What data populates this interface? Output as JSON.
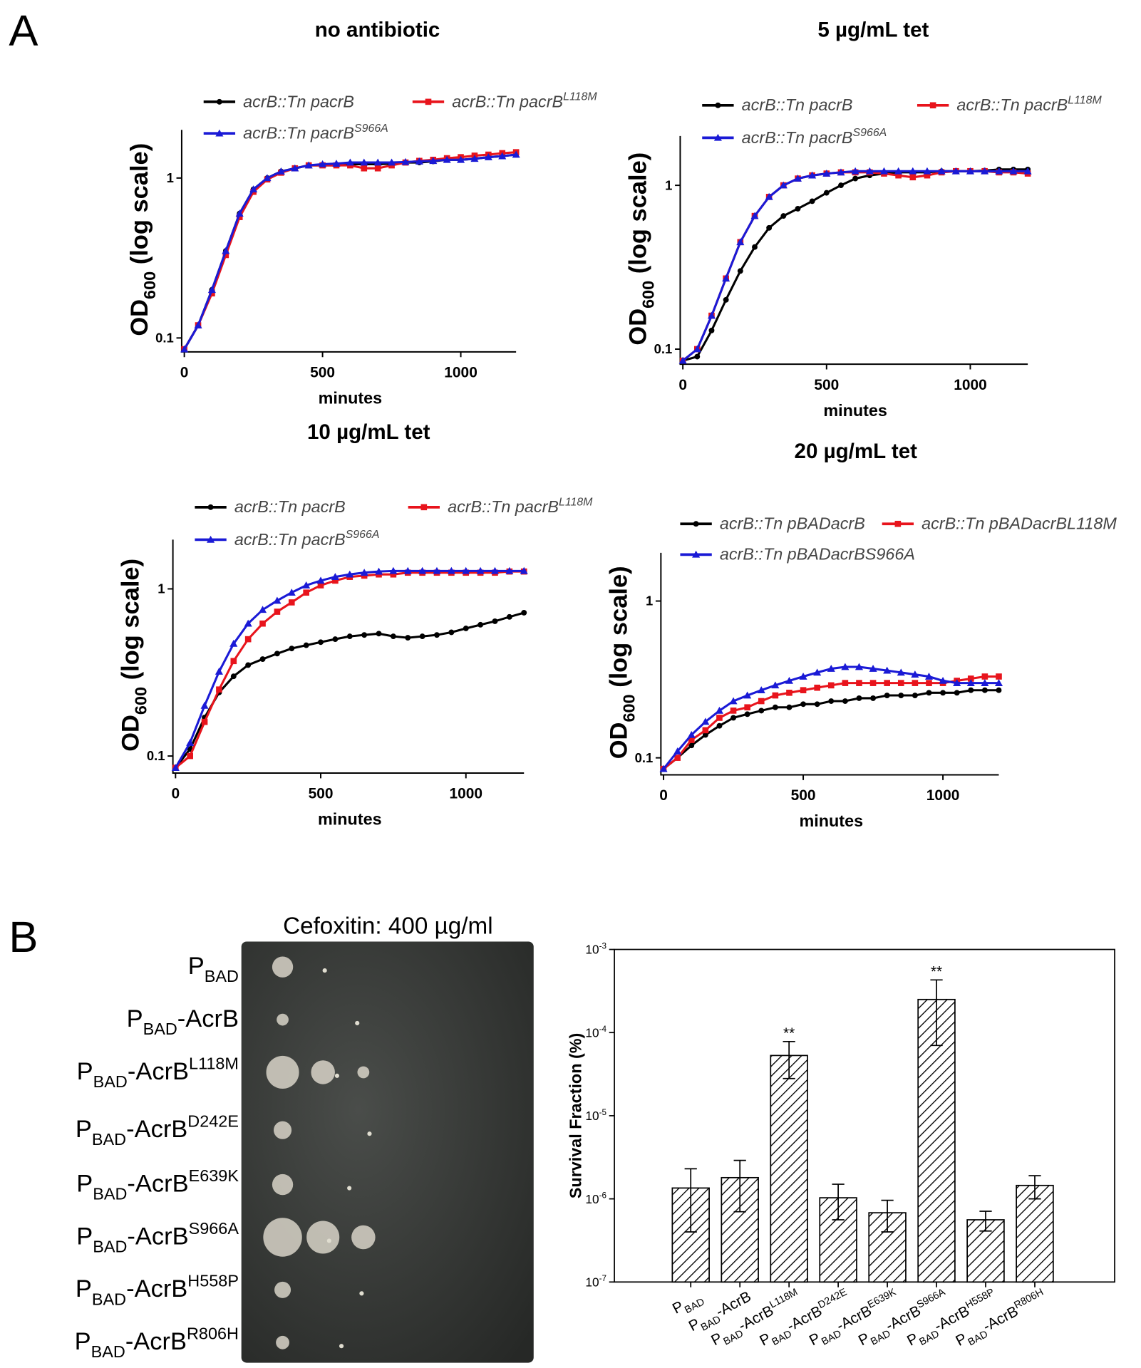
{
  "panels": [
    "A",
    "B"
  ],
  "plate": {
    "title": "Cefoxitin: 400 µg/ml",
    "rows": [
      [
        {
          "t": "P"
        },
        {
          "t": "BAD",
          "s": "sub"
        }
      ],
      [
        {
          "t": "P"
        },
        {
          "t": "BAD",
          "s": "sub"
        },
        {
          "t": "-AcrB"
        }
      ],
      [
        {
          "t": "P"
        },
        {
          "t": "BAD",
          "s": "sub"
        },
        {
          "t": "-AcrB"
        },
        {
          "t": "L118M",
          "s": "sup"
        }
      ],
      [
        {
          "t": "P"
        },
        {
          "t": "BAD",
          "s": "sub"
        },
        {
          "t": "-AcrB"
        },
        {
          "t": "D242E",
          "s": "sup"
        }
      ],
      [
        {
          "t": "P"
        },
        {
          "t": "BAD",
          "s": "sub"
        },
        {
          "t": "-AcrB"
        },
        {
          "t": "E639K",
          "s": "sup"
        }
      ],
      [
        {
          "t": "P"
        },
        {
          "t": "BAD",
          "s": "sub"
        },
        {
          "t": "-AcrB"
        },
        {
          "t": "S966A",
          "s": "sup"
        }
      ],
      [
        {
          "t": "P"
        },
        {
          "t": "BAD",
          "s": "sub"
        },
        {
          "t": "-AcrB"
        },
        {
          "t": "H558P",
          "s": "sup"
        }
      ],
      [
        {
          "t": "P"
        },
        {
          "t": "BAD",
          "s": "sub"
        },
        {
          "t": "-AcrB"
        },
        {
          "t": "R806H",
          "s": "sup"
        }
      ]
    ]
  },
  "chart_data": [
    {
      "type": "line",
      "title": "no antibiotic",
      "xlabel": "minutes",
      "ylabel": [
        {
          "t": "OD"
        },
        {
          "t": "600",
          "s": "sub"
        },
        {
          "t": " (log scale)"
        }
      ],
      "log_y": true,
      "x": [
        0,
        50,
        100,
        150,
        200,
        250,
        300,
        350,
        400,
        450,
        500,
        550,
        600,
        650,
        700,
        750,
        800,
        850,
        900,
        950,
        1000,
        1050,
        1100,
        1150,
        1200
      ],
      "xlim": [
        0,
        1200
      ],
      "xticks": [
        0,
        500,
        1000
      ],
      "ylim": [
        0.085,
        2
      ],
      "yticks": [
        0.1,
        1
      ],
      "series": [
        {
          "name": [
            {
              "t": "acrB::Tn pacrB"
            }
          ],
          "color": "#000000",
          "marker": "circle",
          "values": [
            0.085,
            0.12,
            0.2,
            0.35,
            0.6,
            0.85,
            1.0,
            1.1,
            1.15,
            1.2,
            1.2,
            1.2,
            1.22,
            1.22,
            1.22,
            1.23,
            1.25,
            1.25,
            1.27,
            1.3,
            1.3,
            1.32,
            1.35,
            1.37,
            1.4
          ]
        },
        {
          "name": [
            {
              "t": "acrB::Tn pacrB"
            },
            {
              "t": "L118M",
              "s": "sup"
            }
          ],
          "color": "#e8141c",
          "marker": "square",
          "values": [
            0.085,
            0.12,
            0.19,
            0.33,
            0.57,
            0.82,
            0.98,
            1.08,
            1.15,
            1.2,
            1.2,
            1.2,
            1.2,
            1.15,
            1.15,
            1.2,
            1.25,
            1.28,
            1.3,
            1.33,
            1.35,
            1.38,
            1.4,
            1.43,
            1.45
          ]
        },
        {
          "name": [
            {
              "t": "acrB::Tn pacrB"
            },
            {
              "t": "S966A",
              "s": "sup"
            }
          ],
          "color": "#1a1ad6",
          "marker": "triangle",
          "values": [
            0.085,
            0.12,
            0.2,
            0.35,
            0.6,
            0.85,
            1.0,
            1.1,
            1.15,
            1.2,
            1.22,
            1.23,
            1.25,
            1.25,
            1.25,
            1.25,
            1.26,
            1.27,
            1.28,
            1.3,
            1.3,
            1.32,
            1.35,
            1.37,
            1.4
          ]
        }
      ]
    },
    {
      "type": "line",
      "title": "5 µg/mL tet",
      "xlabel": "minutes",
      "ylabel": [
        {
          "t": "OD"
        },
        {
          "t": "600",
          "s": "sub"
        },
        {
          "t": " (log scale)"
        }
      ],
      "log_y": true,
      "x": [
        0,
        50,
        100,
        150,
        200,
        250,
        300,
        350,
        400,
        450,
        500,
        550,
        600,
        650,
        700,
        750,
        800,
        850,
        900,
        950,
        1000,
        1050,
        1100,
        1150,
        1200
      ],
      "xlim": [
        0,
        1200
      ],
      "xticks": [
        0,
        500,
        1000
      ],
      "ylim": [
        0.084,
        2
      ],
      "yticks": [
        0.1,
        1
      ],
      "series": [
        {
          "name": [
            {
              "t": "acrB::Tn pacrB"
            }
          ],
          "color": "#000000",
          "marker": "circle",
          "values": [
            0.085,
            0.09,
            0.13,
            0.2,
            0.3,
            0.42,
            0.55,
            0.65,
            0.72,
            0.8,
            0.9,
            1.0,
            1.1,
            1.15,
            1.18,
            1.2,
            1.2,
            1.2,
            1.22,
            1.22,
            1.22,
            1.23,
            1.25,
            1.25,
            1.25
          ]
        },
        {
          "name": [
            {
              "t": "acrB::Tn pacrB"
            },
            {
              "t": "L118M",
              "s": "sup"
            }
          ],
          "color": "#e8141c",
          "marker": "square",
          "values": [
            0.085,
            0.1,
            0.16,
            0.27,
            0.45,
            0.65,
            0.85,
            1.0,
            1.1,
            1.15,
            1.18,
            1.2,
            1.2,
            1.2,
            1.18,
            1.15,
            1.12,
            1.15,
            1.2,
            1.22,
            1.22,
            1.22,
            1.2,
            1.2,
            1.18
          ]
        },
        {
          "name": [
            {
              "t": "acrB::Tn pacrB"
            },
            {
              "t": "S966A",
              "s": "sup"
            }
          ],
          "color": "#1a1ad6",
          "marker": "triangle",
          "values": [
            0.085,
            0.1,
            0.16,
            0.27,
            0.45,
            0.65,
            0.85,
            1.0,
            1.1,
            1.15,
            1.18,
            1.2,
            1.22,
            1.22,
            1.22,
            1.22,
            1.22,
            1.22,
            1.22,
            1.22,
            1.22,
            1.22,
            1.22,
            1.22,
            1.22
          ]
        }
      ]
    },
    {
      "type": "line",
      "title": "10 µg/mL tet",
      "xlabel": "minutes",
      "ylabel": [
        {
          "t": "OD"
        },
        {
          "t": "600",
          "s": "sub"
        },
        {
          "t": " (log scale)"
        }
      ],
      "log_y": true,
      "x": [
        0,
        50,
        100,
        150,
        200,
        250,
        300,
        350,
        400,
        450,
        500,
        550,
        600,
        650,
        700,
        750,
        800,
        850,
        900,
        950,
        1000,
        1050,
        1100,
        1150,
        1200
      ],
      "xlim": [
        0,
        1200
      ],
      "xticks": [
        0,
        500,
        1000
      ],
      "ylim": [
        0.082,
        1.97
      ],
      "yticks": [
        0.1,
        1
      ],
      "series": [
        {
          "name": [
            {
              "t": "acrB::Tn pacrB"
            }
          ],
          "color": "#000000",
          "marker": "circle",
          "values": [
            0.085,
            0.11,
            0.17,
            0.24,
            0.3,
            0.35,
            0.38,
            0.41,
            0.44,
            0.46,
            0.48,
            0.5,
            0.52,
            0.53,
            0.54,
            0.52,
            0.51,
            0.52,
            0.53,
            0.55,
            0.58,
            0.61,
            0.64,
            0.68,
            0.72
          ]
        },
        {
          "name": [
            {
              "t": "acrB::Tn pacrB"
            },
            {
              "t": "L118M",
              "s": "sup"
            }
          ],
          "color": "#e8141c",
          "marker": "square",
          "values": [
            0.085,
            0.1,
            0.16,
            0.25,
            0.37,
            0.5,
            0.62,
            0.73,
            0.83,
            0.95,
            1.05,
            1.12,
            1.18,
            1.2,
            1.22,
            1.22,
            1.25,
            1.25,
            1.25,
            1.25,
            1.25,
            1.25,
            1.25,
            1.27,
            1.27
          ]
        },
        {
          "name": [
            {
              "t": "acrB::Tn pacrB"
            },
            {
              "t": "S966A",
              "s": "sup"
            }
          ],
          "color": "#1a1ad6",
          "marker": "triangle",
          "values": [
            0.085,
            0.12,
            0.2,
            0.32,
            0.47,
            0.62,
            0.75,
            0.85,
            0.95,
            1.05,
            1.12,
            1.18,
            1.22,
            1.25,
            1.27,
            1.28,
            1.28,
            1.28,
            1.28,
            1.28,
            1.28,
            1.28,
            1.28,
            1.28,
            1.28
          ]
        }
      ]
    },
    {
      "type": "line",
      "title": "20 µg/mL tet",
      "xlabel": "minutes",
      "ylabel": [
        {
          "t": "OD"
        },
        {
          "t": "600",
          "s": "sub"
        },
        {
          "t": " (log scale)"
        }
      ],
      "log_y": true,
      "x": [
        0,
        50,
        100,
        150,
        200,
        250,
        300,
        350,
        400,
        450,
        500,
        550,
        600,
        650,
        700,
        750,
        800,
        850,
        900,
        950,
        1000,
        1050,
        1100,
        1150,
        1200
      ],
      "xlim": [
        0,
        1200
      ],
      "xticks": [
        0,
        500,
        1000
      ],
      "ylim": [
        0.081,
        2.03
      ],
      "yticks": [
        0.1,
        1
      ],
      "series": [
        {
          "name": [
            {
              "t": "acrB::Tn pBADacrB"
            }
          ],
          "color": "#000000",
          "marker": "circle",
          "values": [
            0.085,
            0.1,
            0.12,
            0.14,
            0.16,
            0.18,
            0.19,
            0.2,
            0.21,
            0.21,
            0.22,
            0.22,
            0.23,
            0.23,
            0.24,
            0.24,
            0.25,
            0.25,
            0.25,
            0.26,
            0.26,
            0.26,
            0.27,
            0.27,
            0.27
          ]
        },
        {
          "name": [
            {
              "t": "acrB::Tn pBADacrBL118M"
            }
          ],
          "color": "#e8141c",
          "marker": "square",
          "values": [
            0.085,
            0.1,
            0.13,
            0.15,
            0.18,
            0.2,
            0.21,
            0.23,
            0.25,
            0.26,
            0.27,
            0.28,
            0.29,
            0.3,
            0.3,
            0.3,
            0.3,
            0.3,
            0.3,
            0.3,
            0.3,
            0.31,
            0.32,
            0.33,
            0.33
          ]
        },
        {
          "name": [
            {
              "t": "acrB::Tn pBADacrBS966A"
            }
          ],
          "color": "#1a1ad6",
          "marker": "triangle",
          "values": [
            0.085,
            0.11,
            0.14,
            0.17,
            0.2,
            0.23,
            0.25,
            0.27,
            0.29,
            0.31,
            0.33,
            0.35,
            0.37,
            0.38,
            0.38,
            0.37,
            0.36,
            0.35,
            0.34,
            0.33,
            0.31,
            0.3,
            0.3,
            0.3,
            0.3
          ]
        }
      ]
    },
    {
      "type": "bar",
      "ylabel": "Survival Fraction (%)",
      "log_y": true,
      "hatch": true,
      "color": "#000000",
      "categories": [
        [
          {
            "t": "P"
          },
          {
            "t": "BAD",
            "s": "sub"
          }
        ],
        [
          {
            "t": "P"
          },
          {
            "t": "BAD",
            "s": "sub"
          },
          {
            "t": "-AcrB"
          }
        ],
        [
          {
            "t": "P"
          },
          {
            "t": "BAD",
            "s": "sub"
          },
          {
            "t": "-AcrB"
          },
          {
            "t": "L118M",
            "s": "sup"
          }
        ],
        [
          {
            "t": "P"
          },
          {
            "t": "BAD",
            "s": "sub"
          },
          {
            "t": "-AcrB"
          },
          {
            "t": "D242E",
            "s": "sup"
          }
        ],
        [
          {
            "t": "P"
          },
          {
            "t": "BAD",
            "s": "sub"
          },
          {
            "t": "-AcrB"
          },
          {
            "t": "E639K",
            "s": "sup"
          }
        ],
        [
          {
            "t": "P"
          },
          {
            "t": "BAD",
            "s": "sub"
          },
          {
            "t": "-AcrB"
          },
          {
            "t": "S966A",
            "s": "sup"
          }
        ],
        [
          {
            "t": "P"
          },
          {
            "t": "BAD",
            "s": "sub"
          },
          {
            "t": "-AcrB"
          },
          {
            "t": "H558P",
            "s": "sup"
          }
        ],
        [
          {
            "t": "P"
          },
          {
            "t": "BAD",
            "s": "sub"
          },
          {
            "t": "-AcrB"
          },
          {
            "t": "R806H",
            "s": "sup"
          }
        ]
      ],
      "values": [
        1.35e-06,
        1.8e-06,
        5.3e-05,
        1.03e-06,
        6.8e-07,
        0.00025,
        5.6e-07,
        1.45e-06
      ],
      "errors": [
        9.5e-07,
        1.1e-06,
        2.5e-05,
        4.7e-07,
        2.8e-07,
        0.00018,
        1.5e-07,
        4.5e-07
      ],
      "significance": [
        null,
        null,
        "**",
        null,
        null,
        "**",
        null,
        null
      ],
      "ylim": [
        1e-07,
        0.001
      ],
      "yticks": [
        {
          "value": 1e-07,
          "label": [
            {
              "t": "10"
            },
            {
              "t": "-7",
              "s": "sup"
            }
          ]
        },
        {
          "value": 1e-06,
          "label": [
            {
              "t": "10"
            },
            {
              "t": "-6",
              "s": "sup"
            }
          ]
        },
        {
          "value": 1e-05,
          "label": [
            {
              "t": "10"
            },
            {
              "t": "-5",
              "s": "sup"
            }
          ]
        },
        {
          "value": 0.0001,
          "label": [
            {
              "t": "10"
            },
            {
              "t": "-4",
              "s": "sup"
            }
          ]
        },
        {
          "value": 0.001,
          "label": [
            {
              "t": "10"
            },
            {
              "t": "-3",
              "s": "sup"
            }
          ]
        }
      ]
    }
  ]
}
